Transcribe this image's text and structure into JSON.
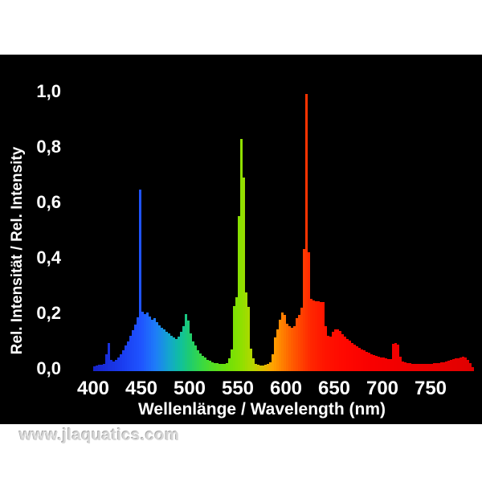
{
  "page": {
    "background": "#ffffff",
    "watermark": "www.jlaquatics.com"
  },
  "chart_data": {
    "type": "bar",
    "title": "",
    "xlabel": "Wellenlänge / Wavelength (nm)",
    "ylabel": "Rel. Intensität / Rel. Intensity",
    "plot_background": "#000000",
    "text_color": "#ffffff",
    "grid": false,
    "legend": false,
    "xlim": [
      400,
      795
    ],
    "ylim": [
      0,
      1.0
    ],
    "x_ticks": [
      {
        "label": "400",
        "value": 400
      },
      {
        "label": "450",
        "value": 450
      },
      {
        "label": "500",
        "value": 500
      },
      {
        "label": "550",
        "value": 550
      },
      {
        "label": "600",
        "value": 600
      },
      {
        "label": "650",
        "value": 650
      },
      {
        "label": "700",
        "value": 700
      },
      {
        "label": "750",
        "value": 750
      }
    ],
    "y_ticks": [
      {
        "label": "1,0",
        "value": 1.0
      },
      {
        "label": "0,8",
        "value": 0.8
      },
      {
        "label": "0,6",
        "value": 0.6
      },
      {
        "label": "0,4",
        "value": 0.4
      },
      {
        "label": "0,2",
        "value": 0.2
      },
      {
        "label": "0,0",
        "value": 0.0
      }
    ],
    "bin_nm": 2.5,
    "wavelength_nm": [
      400,
      402.5,
      405,
      407.5,
      410,
      412.5,
      415,
      417.5,
      420,
      422.5,
      425,
      427.5,
      430,
      432.5,
      435,
      437.5,
      440,
      442.5,
      445,
      447.5,
      450,
      452.5,
      455,
      457.5,
      460,
      462.5,
      465,
      467.5,
      470,
      472.5,
      475,
      477.5,
      480,
      482.5,
      485,
      487.5,
      490,
      492.5,
      495,
      497.5,
      500,
      502.5,
      505,
      507.5,
      510,
      512.5,
      515,
      517.5,
      520,
      522.5,
      525,
      527.5,
      530,
      532.5,
      535,
      537.5,
      540,
      542.5,
      545,
      547.5,
      550,
      552.5,
      555,
      557.5,
      560,
      562.5,
      565,
      567.5,
      570,
      572.5,
      575,
      577.5,
      580,
      582.5,
      585,
      587.5,
      590,
      592.5,
      595,
      597.5,
      600,
      602.5,
      605,
      607.5,
      610,
      612.5,
      615,
      617.5,
      620,
      622.5,
      625,
      627.5,
      630,
      632.5,
      635,
      637.5,
      640,
      642.5,
      645,
      647.5,
      650,
      652.5,
      655,
      657.5,
      660,
      662.5,
      665,
      667.5,
      670,
      672.5,
      675,
      677.5,
      680,
      682.5,
      685,
      687.5,
      690,
      692.5,
      695,
      697.5,
      700,
      702.5,
      705,
      707.5,
      710,
      712.5,
      715,
      717.5,
      720,
      722.5,
      725,
      727.5,
      730,
      732.5,
      735,
      737.5,
      740,
      742.5,
      745,
      747.5,
      750,
      752.5,
      755,
      757.5,
      760,
      762.5,
      765,
      767.5,
      770,
      772.5,
      775,
      777.5,
      780,
      782.5,
      785,
      787.5,
      790,
      792.5
    ],
    "intensity": [
      0.018,
      0.02,
      0.022,
      0.022,
      0.025,
      0.06,
      0.1,
      0.042,
      0.036,
      0.04,
      0.05,
      0.062,
      0.075,
      0.092,
      0.108,
      0.128,
      0.148,
      0.168,
      0.195,
      0.655,
      0.215,
      0.205,
      0.212,
      0.198,
      0.186,
      0.19,
      0.176,
      0.166,
      0.156,
      0.15,
      0.142,
      0.136,
      0.128,
      0.122,
      0.116,
      0.126,
      0.142,
      0.162,
      0.205,
      0.182,
      0.136,
      0.106,
      0.094,
      0.076,
      0.065,
      0.056,
      0.048,
      0.042,
      0.037,
      0.033,
      0.03,
      0.028,
      0.026,
      0.025,
      0.025,
      0.028,
      0.045,
      0.078,
      0.235,
      0.268,
      0.56,
      0.838,
      0.7,
      0.285,
      0.232,
      0.082,
      0.046,
      0.026,
      0.022,
      0.02,
      0.02,
      0.022,
      0.026,
      0.032,
      0.062,
      0.122,
      0.152,
      0.186,
      0.212,
      0.202,
      0.172,
      0.162,
      0.156,
      0.162,
      0.19,
      0.202,
      0.228,
      0.44,
      1.0,
      0.43,
      0.262,
      0.256,
      0.252,
      0.252,
      0.25,
      0.248,
      0.162,
      0.128,
      0.126,
      0.142,
      0.152,
      0.15,
      0.146,
      0.132,
      0.126,
      0.116,
      0.11,
      0.102,
      0.096,
      0.09,
      0.084,
      0.078,
      0.074,
      0.07,
      0.066,
      0.062,
      0.058,
      0.056,
      0.053,
      0.05,
      0.048,
      0.046,
      0.044,
      0.043,
      0.098,
      0.102,
      0.096,
      0.052,
      0.036,
      0.031,
      0.029,
      0.028,
      0.027,
      0.026,
      0.026,
      0.025,
      0.025,
      0.025,
      0.026,
      0.026,
      0.027,
      0.028,
      0.029,
      0.03,
      0.031,
      0.033,
      0.035,
      0.038,
      0.04,
      0.043,
      0.045,
      0.047,
      0.05,
      0.052,
      0.048,
      0.042,
      0.028,
      0.015
    ],
    "spectrum_gradient": [
      {
        "nm": 400,
        "hex": "#1723c8"
      },
      {
        "nm": 430,
        "hex": "#1a3cf0"
      },
      {
        "nm": 450,
        "hex": "#1f55ff"
      },
      {
        "nm": 465,
        "hex": "#1e7df8"
      },
      {
        "nm": 478,
        "hex": "#14a4d0"
      },
      {
        "nm": 490,
        "hex": "#10bfa0"
      },
      {
        "nm": 500,
        "hex": "#1ecc70"
      },
      {
        "nm": 512,
        "hex": "#38d844"
      },
      {
        "nm": 525,
        "hex": "#55dd22"
      },
      {
        "nm": 540,
        "hex": "#70e008"
      },
      {
        "nm": 553,
        "hex": "#8ce000"
      },
      {
        "nm": 565,
        "hex": "#b4d800"
      },
      {
        "nm": 577,
        "hex": "#e0bc00"
      },
      {
        "nm": 586,
        "hex": "#ffa300"
      },
      {
        "nm": 595,
        "hex": "#ff8400"
      },
      {
        "nm": 605,
        "hex": "#ff6000"
      },
      {
        "nm": 615,
        "hex": "#ff4400"
      },
      {
        "nm": 625,
        "hex": "#ff2800"
      },
      {
        "nm": 640,
        "hex": "#ff1400"
      },
      {
        "nm": 660,
        "hex": "#ff0800"
      },
      {
        "nm": 690,
        "hex": "#f80000"
      },
      {
        "nm": 730,
        "hex": "#ee0000"
      },
      {
        "nm": 780,
        "hex": "#e40000"
      },
      {
        "nm": 795,
        "hex": "#dc0000"
      }
    ]
  }
}
